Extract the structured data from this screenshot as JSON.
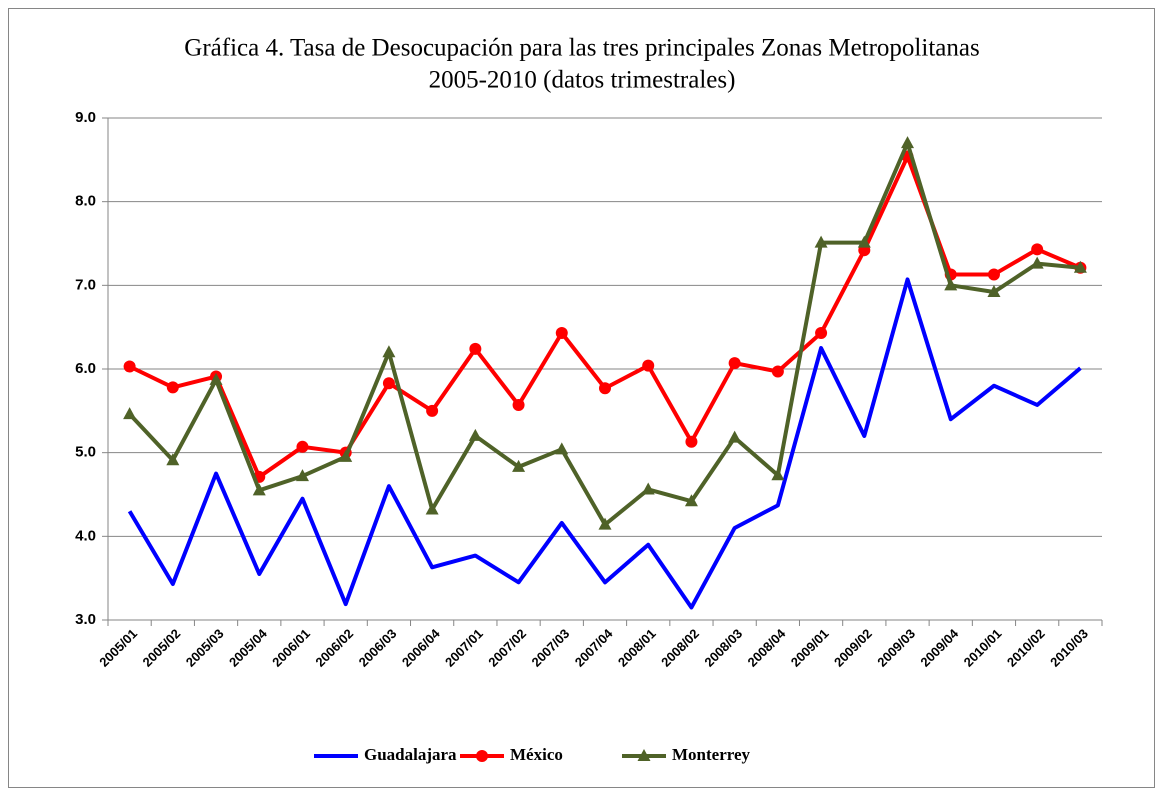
{
  "chart_data": {
    "type": "line",
    "title": "Gráfica 4. Tasa de Desocupación para las tres principales Zonas Metropolitanas",
    "subtitle": "2005-2010 (datos trimestrales)",
    "categories": [
      "2005/01",
      "2005/02",
      "2005/03",
      "2005/04",
      "2006/01",
      "2006/02",
      "2006/03",
      "2006/04",
      "2007/01",
      "2007/02",
      "2007/03",
      "2007/04",
      "2008/01",
      "2008/02",
      "2008/03",
      "2008/04",
      "2009/01",
      "2009/02",
      "2009/03",
      "2009/04",
      "2010/01",
      "2010/02",
      "2010/03"
    ],
    "series": [
      {
        "name": "Guadalajara",
        "color": "#0000ff",
        "values": [
          4.3,
          3.43,
          4.75,
          3.55,
          4.45,
          3.19,
          4.6,
          3.63,
          3.77,
          3.45,
          4.16,
          3.45,
          3.9,
          3.15,
          4.1,
          4.37,
          6.25,
          5.2,
          7.07,
          5.4,
          5.8,
          5.57,
          6.01
        ]
      },
      {
        "name": "México",
        "color": "#ff0000",
        "marker": "circle",
        "values": [
          6.03,
          5.78,
          5.91,
          4.71,
          5.07,
          5.0,
          5.83,
          5.5,
          6.24,
          5.57,
          6.43,
          5.77,
          6.04,
          5.13,
          6.07,
          5.97,
          6.43,
          7.42,
          8.54,
          7.13,
          7.13,
          7.43,
          7.21
        ]
      },
      {
        "name": "Monterrey",
        "color": "#4f6228",
        "marker": "triangle",
        "values": [
          5.46,
          4.91,
          5.87,
          4.55,
          4.72,
          4.95,
          6.2,
          4.32,
          5.2,
          4.83,
          5.04,
          4.14,
          4.56,
          4.42,
          5.18,
          4.73,
          7.51,
          7.51,
          8.7,
          7.0,
          6.92,
          7.26,
          7.21
        ]
      }
    ],
    "ylim": [
      3,
      9
    ],
    "yticks": [
      {
        "value": 3,
        "label": "3.0"
      },
      {
        "value": 4,
        "label": "4.0"
      },
      {
        "value": 5,
        "label": "5.0"
      },
      {
        "value": 6,
        "label": "6.0"
      },
      {
        "value": 7,
        "label": "7.0"
      },
      {
        "value": 8,
        "label": "8.0"
      },
      {
        "value": 9,
        "label": "9.0"
      }
    ],
    "grid": true,
    "legend": "bottom"
  }
}
